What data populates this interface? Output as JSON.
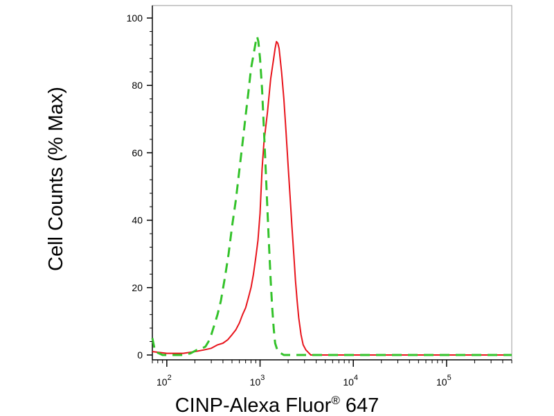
{
  "chart_data": {
    "type": "line",
    "xlabel": "CINP-Alexa Fluor",
    "xlabel_superscript": "®",
    "xlabel_suffix": " 647",
    "ylabel": "Cell Counts (% Max)",
    "x_scale": "log",
    "xlim": [
      70,
      500000
    ],
    "ylim": [
      0,
      100
    ],
    "y_ticks": [
      {
        "value": 0,
        "label": "0"
      },
      {
        "value": 20,
        "label": "20"
      },
      {
        "value": 40,
        "label": "40"
      },
      {
        "value": 60,
        "label": "60"
      },
      {
        "value": 80,
        "label": "80"
      },
      {
        "value": 100,
        "label": "100"
      }
    ],
    "x_ticks": [
      {
        "value": 100,
        "base": "10",
        "exp": "2"
      },
      {
        "value": 1000,
        "base": "10",
        "exp": "3"
      },
      {
        "value": 10000,
        "base": "10",
        "exp": "4"
      },
      {
        "value": 100000,
        "base": "10",
        "exp": "5"
      }
    ],
    "grid": false,
    "legend": "none",
    "series": [
      {
        "color": "#e8131b",
        "dash": "solid",
        "points": [
          [
            70,
            1
          ],
          [
            100,
            0.5
          ],
          [
            150,
            0.5
          ],
          [
            200,
            1
          ],
          [
            250,
            1.5
          ],
          [
            300,
            2
          ],
          [
            350,
            3
          ],
          [
            400,
            3.5
          ],
          [
            450,
            4.5
          ],
          [
            500,
            6
          ],
          [
            550,
            7.5
          ],
          [
            600,
            9.5
          ],
          [
            650,
            12
          ],
          [
            700,
            14
          ],
          [
            750,
            17
          ],
          [
            800,
            20
          ],
          [
            850,
            24
          ],
          [
            900,
            29
          ],
          [
            950,
            34
          ],
          [
            1000,
            42
          ],
          [
            1050,
            55
          ],
          [
            1100,
            63
          ],
          [
            1200,
            72
          ],
          [
            1300,
            82
          ],
          [
            1400,
            88
          ],
          [
            1450,
            91
          ],
          [
            1500,
            93
          ],
          [
            1550,
            92.5
          ],
          [
            1600,
            91
          ],
          [
            1700,
            84
          ],
          [
            1800,
            76
          ],
          [
            1900,
            66
          ],
          [
            2000,
            56
          ],
          [
            2100,
            47
          ],
          [
            2200,
            38
          ],
          [
            2300,
            30
          ],
          [
            2400,
            22
          ],
          [
            2500,
            16
          ],
          [
            2600,
            11
          ],
          [
            2750,
            6
          ],
          [
            2900,
            3
          ],
          [
            3100,
            1.5
          ],
          [
            3500,
            0
          ],
          [
            5000,
            0
          ],
          [
            500000,
            0
          ]
        ]
      },
      {
        "color": "#33c22a",
        "dash": "dashed",
        "points": [
          [
            70,
            5
          ],
          [
            75,
            1
          ],
          [
            90,
            0
          ],
          [
            150,
            0
          ],
          [
            180,
            0.5
          ],
          [
            210,
            1.5
          ],
          [
            240,
            2
          ],
          [
            260,
            2.5
          ],
          [
            280,
            4
          ],
          [
            300,
            6
          ],
          [
            320,
            8.5
          ],
          [
            350,
            12
          ],
          [
            380,
            16
          ],
          [
            420,
            23
          ],
          [
            460,
            30
          ],
          [
            500,
            38
          ],
          [
            550,
            46
          ],
          [
            600,
            55
          ],
          [
            650,
            63
          ],
          [
            700,
            71
          ],
          [
            750,
            78
          ],
          [
            800,
            85
          ],
          [
            850,
            89
          ],
          [
            900,
            93
          ],
          [
            930,
            94.5
          ],
          [
            960,
            93
          ],
          [
            1000,
            88
          ],
          [
            1050,
            79
          ],
          [
            1100,
            67
          ],
          [
            1150,
            55
          ],
          [
            1200,
            43
          ],
          [
            1250,
            32
          ],
          [
            1300,
            22
          ],
          [
            1350,
            14
          ],
          [
            1400,
            8
          ],
          [
            1450,
            3.5
          ],
          [
            1550,
            1
          ],
          [
            1800,
            0
          ],
          [
            500000,
            0
          ]
        ]
      }
    ]
  }
}
